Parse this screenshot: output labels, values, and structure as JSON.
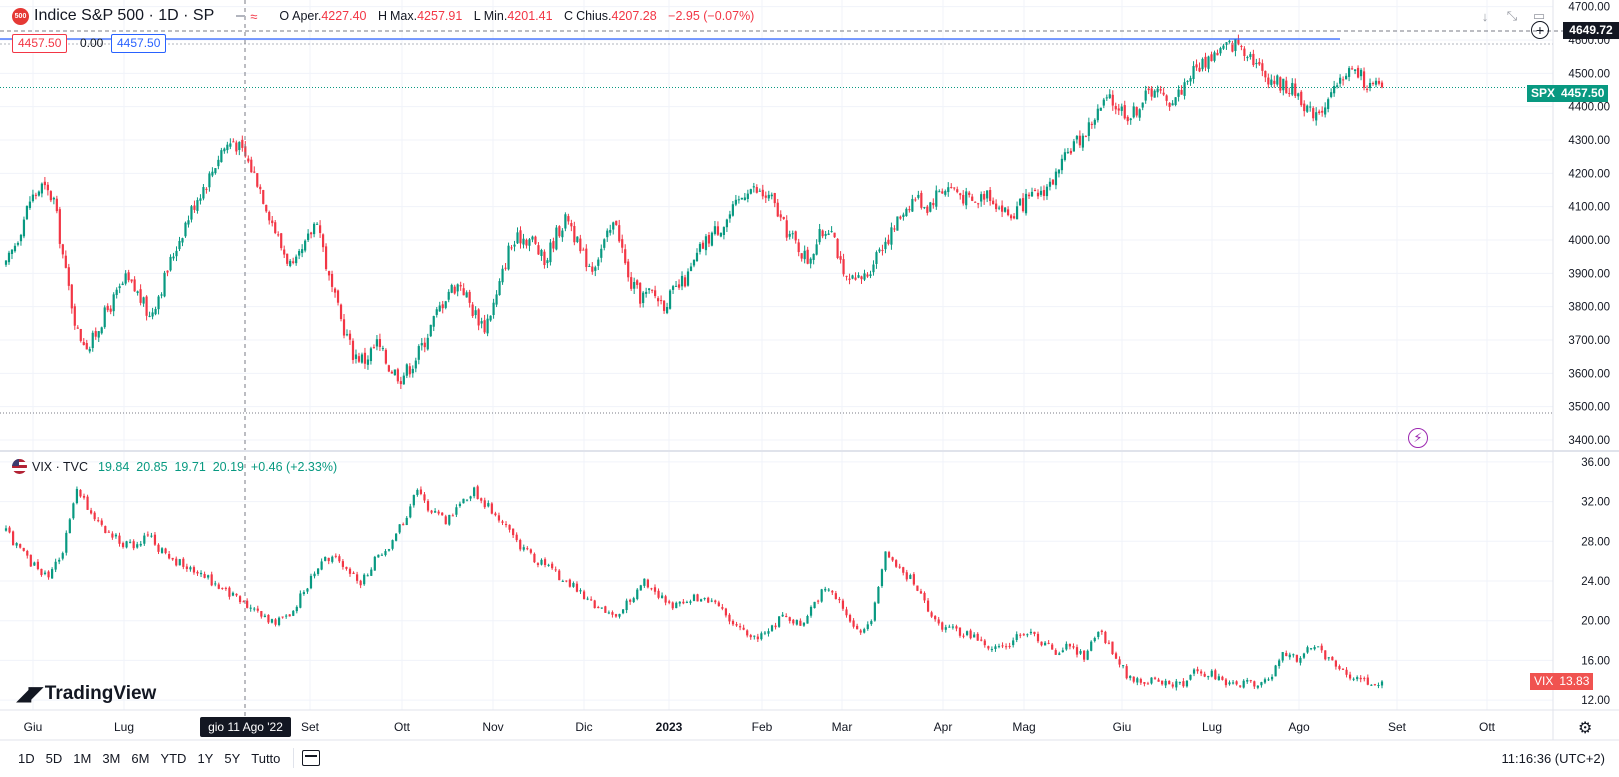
{
  "header": {
    "badge": "500",
    "symbol_title": "Indice S&P 500 · 1D · SP",
    "ohlc": [
      {
        "k": "O",
        "lbl": "Aper.",
        "v": "4227.40"
      },
      {
        "k": "H",
        "lbl": "Max.",
        "v": "4257.91"
      },
      {
        "k": "L",
        "lbl": "Min.",
        "v": "4201.41"
      },
      {
        "k": "C",
        "lbl": "Chius.",
        "v": "4207.28"
      }
    ],
    "change": "−2.95 (−0.07%)"
  },
  "position_tool": {
    "left_value": "4457.50",
    "mid_value": "0.00",
    "right_value": "4457.50"
  },
  "vix_legend": {
    "symbol": "VIX · TVC",
    "values": "19.84  20.85  19.71  20.19  +0.46 (+2.33%)"
  },
  "price_tags": {
    "top_level": "4649.72",
    "spx_label": "SPX",
    "spx_value": "4457.50",
    "vix_label": "VIX",
    "vix_value": "13.83"
  },
  "crosshair_label": "gio 11 Ago '22",
  "logo_text": "TradingView",
  "toolbar": {
    "ranges": [
      "1D",
      "5D",
      "1M",
      "3M",
      "6M",
      "YTD",
      "1Y",
      "5Y",
      "Tutto"
    ],
    "clock": "11:16:36 (UTC+2)"
  },
  "colors": {
    "up": "#089981",
    "down": "#f23645",
    "accent": "#2962ff",
    "vix_tag": "#f05350"
  },
  "chart_data": [
    {
      "type": "candlestick",
      "title": "Indice S&P 500 · 1D · SP",
      "series": [
        {
          "name": "SPX",
          "values": [
            [
              0,
              3920
            ],
            [
              4,
              4010
            ],
            [
              8,
              4120
            ],
            [
              12,
              4160
            ],
            [
              16,
              4120
            ],
            [
              20,
              3900
            ],
            [
              24,
              3720
            ],
            [
              28,
              3680
            ],
            [
              32,
              3760
            ],
            [
              36,
              3820
            ],
            [
              40,
              3880
            ],
            [
              44,
              3840
            ],
            [
              48,
              3770
            ],
            [
              52,
              3860
            ],
            [
              56,
              3960
            ],
            [
              60,
              4050
            ],
            [
              64,
              4130
            ],
            [
              68,
              4190
            ],
            [
              72,
              4270
            ],
            [
              76,
              4300
            ],
            [
              80,
              4250
            ],
            [
              84,
              4180
            ],
            [
              88,
              4080
            ],
            [
              92,
              3980
            ],
            [
              96,
              3910
            ],
            [
              100,
              3980
            ],
            [
              104,
              4070
            ],
            [
              108,
              3880
            ],
            [
              112,
              3760
            ],
            [
              116,
              3660
            ],
            [
              120,
              3640
            ],
            [
              124,
              3690
            ],
            [
              128,
              3620
            ],
            [
              132,
              3590
            ],
            [
              136,
              3630
            ],
            [
              140,
              3700
            ],
            [
              144,
              3780
            ],
            [
              148,
              3850
            ],
            [
              152,
              3870
            ],
            [
              156,
              3790
            ],
            [
              160,
              3740
            ],
            [
              164,
              3830
            ],
            [
              168,
              3970
            ],
            [
              172,
              4010
            ],
            [
              176,
              4000
            ],
            [
              180,
              3930
            ],
            [
              184,
              4020
            ],
            [
              188,
              4070
            ],
            [
              192,
              3960
            ],
            [
              196,
              3920
            ],
            [
              200,
              3990
            ],
            [
              204,
              4060
            ],
            [
              208,
              3880
            ],
            [
              212,
              3830
            ],
            [
              216,
              3840
            ],
            [
              220,
              3810
            ],
            [
              224,
              3850
            ],
            [
              228,
              3890
            ],
            [
              232,
              3970
            ],
            [
              236,
              4020
            ],
            [
              240,
              4050
            ],
            [
              244,
              4100
            ],
            [
              248,
              4160
            ],
            [
              252,
              4140
            ],
            [
              256,
              4120
            ],
            [
              260,
              4040
            ],
            [
              264,
              3990
            ],
            [
              268,
              3940
            ],
            [
              272,
              4010
            ],
            [
              276,
              4050
            ],
            [
              280,
              3880
            ],
            [
              284,
              3870
            ],
            [
              288,
              3900
            ],
            [
              292,
              3980
            ],
            [
              296,
              4020
            ],
            [
              300,
              4090
            ],
            [
              304,
              4130
            ],
            [
              308,
              4100
            ],
            [
              312,
              4150
            ],
            [
              316,
              4160
            ],
            [
              320,
              4130
            ],
            [
              324,
              4110
            ],
            [
              328,
              4150
            ],
            [
              332,
              4100
            ],
            [
              336,
              4070
            ],
            [
              340,
              4110
            ],
            [
              344,
              4130
            ],
            [
              348,
              4160
            ],
            [
              352,
              4200
            ],
            [
              356,
              4280
            ],
            [
              360,
              4310
            ],
            [
              364,
              4370
            ],
            [
              368,
              4420
            ],
            [
              372,
              4400
            ],
            [
              376,
              4370
            ],
            [
              380,
              4420
            ],
            [
              384,
              4460
            ],
            [
              388,
              4410
            ],
            [
              392,
              4440
            ],
            [
              396,
              4500
            ],
            [
              400,
              4530
            ],
            [
              404,
              4560
            ],
            [
              408,
              4580
            ],
            [
              412,
              4590
            ],
            [
              416,
              4560
            ],
            [
              420,
              4500
            ],
            [
              424,
              4480
            ],
            [
              428,
              4460
            ],
            [
              432,
              4440
            ],
            [
              436,
              4380
            ],
            [
              440,
              4400
            ],
            [
              444,
              4440
            ],
            [
              448,
              4510
            ],
            [
              452,
              4500
            ],
            [
              456,
              4460
            ],
            [
              460,
              4457.5
            ]
          ]
        }
      ],
      "xlabel": "",
      "ylabel": "",
      "ylim": [
        3370,
        4720
      ],
      "y_ticks": [
        "4700.00",
        "4600.00",
        "4500.00",
        "4400.00",
        "4300.00",
        "4200.00",
        "4100.00",
        "4000.00",
        "3900.00",
        "3800.00",
        "3700.00",
        "3600.00",
        "3500.00",
        "3400.00"
      ],
      "grid": true
    },
    {
      "type": "candlestick",
      "title": "VIX · TVC",
      "series": [
        {
          "name": "VIX",
          "values": [
            [
              0,
              29
            ],
            [
              4,
              27
            ],
            [
              8,
              25.5
            ],
            [
              12,
              24.5
            ],
            [
              16,
              27
            ],
            [
              20,
              33
            ],
            [
              24,
              31
            ],
            [
              28,
              29
            ],
            [
              32,
              28
            ],
            [
              36,
              27.5
            ],
            [
              40,
              28.5
            ],
            [
              44,
              27
            ],
            [
              48,
              26
            ],
            [
              52,
              25
            ],
            [
              56,
              24.5
            ],
            [
              60,
              23.5
            ],
            [
              64,
              22.5
            ],
            [
              68,
              21.5
            ],
            [
              72,
              20.5
            ],
            [
              76,
              20
            ],
            [
              80,
              20.5
            ],
            [
              84,
              23
            ],
            [
              88,
              25.5
            ],
            [
              92,
              26.5
            ],
            [
              96,
              25
            ],
            [
              100,
              24
            ],
            [
              104,
              26
            ],
            [
              108,
              27.5
            ],
            [
              112,
              30
            ],
            [
              116,
              33
            ],
            [
              120,
              31
            ],
            [
              124,
              30
            ],
            [
              128,
              32
            ],
            [
              132,
              33
            ],
            [
              136,
              31.5
            ],
            [
              140,
              30
            ],
            [
              144,
              28
            ],
            [
              148,
              26.5
            ],
            [
              152,
              25.5
            ],
            [
              156,
              24.5
            ],
            [
              160,
              23.5
            ],
            [
              164,
              22
            ],
            [
              168,
              21
            ],
            [
              172,
              20.5
            ],
            [
              176,
              22
            ],
            [
              180,
              24
            ],
            [
              184,
              22.5
            ],
            [
              188,
              21.5
            ],
            [
              192,
              22
            ],
            [
              196,
              22.5
            ],
            [
              200,
              21.5
            ],
            [
              204,
              20
            ],
            [
              208,
              19
            ],
            [
              212,
              18.5
            ],
            [
              216,
              19.5
            ],
            [
              220,
              20.5
            ],
            [
              224,
              19.5
            ],
            [
              228,
              22
            ],
            [
              232,
              23.5
            ],
            [
              236,
              21
            ],
            [
              240,
              19
            ],
            [
              244,
              20
            ],
            [
              248,
              27
            ],
            [
              252,
              25
            ],
            [
              256,
              24
            ],
            [
              260,
              21
            ],
            [
              264,
              19.5
            ],
            [
              268,
              19
            ],
            [
              272,
              18.5
            ],
            [
              276,
              17.5
            ],
            [
              280,
              17
            ],
            [
              284,
              18
            ],
            [
              288,
              19
            ],
            [
              292,
              17.5
            ],
            [
              296,
              17
            ],
            [
              300,
              17.5
            ],
            [
              304,
              16.5
            ],
            [
              308,
              19
            ],
            [
              312,
              17
            ],
            [
              316,
              14.5
            ],
            [
              320,
              14
            ],
            [
              324,
              13.8
            ],
            [
              328,
              13.5
            ],
            [
              332,
              13.6
            ],
            [
              336,
              15
            ],
            [
              340,
              14.5
            ],
            [
              344,
              13.8
            ],
            [
              348,
              13.5
            ],
            [
              352,
              13.8
            ],
            [
              356,
              14
            ],
            [
              360,
              17
            ],
            [
              364,
              16
            ],
            [
              368,
              17.5
            ],
            [
              372,
              16.5
            ],
            [
              376,
              15
            ],
            [
              380,
              14
            ],
            [
              384,
              13.8
            ],
            [
              388,
              13.83
            ]
          ]
        }
      ],
      "xlabel": "",
      "ylabel": "",
      "ylim": [
        11,
        37
      ],
      "y_ticks": [
        "36.00",
        "32.00",
        "28.00",
        "24.00",
        "20.00",
        "16.00",
        "12.00"
      ],
      "grid": true
    }
  ],
  "x_axis": {
    "labels": [
      "Giu",
      "Lug",
      "Set",
      "Ott",
      "Nov",
      "Dic",
      "2023",
      "Feb",
      "Mar",
      "Apr",
      "Mag",
      "Giu",
      "Lug",
      "Ago",
      "Set",
      "Ott"
    ]
  }
}
